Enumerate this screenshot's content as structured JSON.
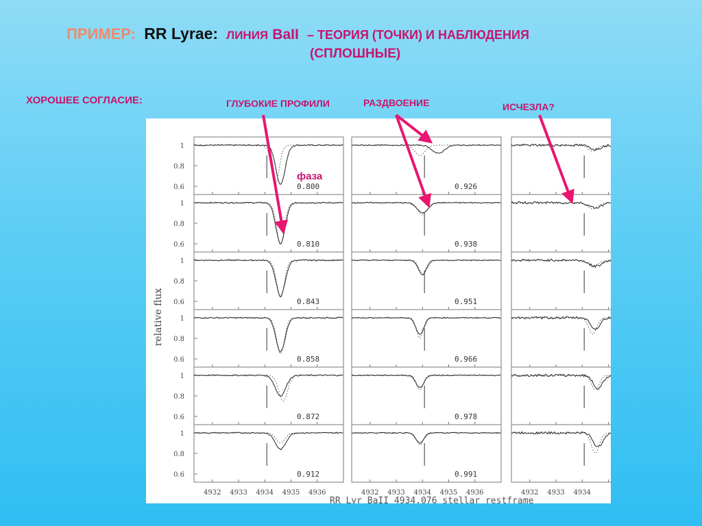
{
  "title": {
    "example": "ПРИМЕР:",
    "star": "RR Lyrae:",
    "line_word": "ЛИНИЯ",
    "ion": "BaII",
    "rest": "– ТЕОРИЯ (ТОЧКИ) И НАБЛЮДЕНИЯ",
    "line2": "(СПЛОШНЫЕ)"
  },
  "labels": {
    "good_agreement": "ХОРОШЕЕ СОГЛАСИЕ:",
    "deep_profiles": "ГЛУБОКИЕ ПРОФИЛИ",
    "splitting": "РАЗДВОЕНИЕ",
    "vanished": "ИСЧЕЗЛА?",
    "phase": "фаза"
  },
  "colors": {
    "example": "#f08a6a",
    "accent": "#c7156d",
    "arrow": "#e8166f",
    "observed": "#333333",
    "theory": "#555555"
  },
  "chart_data": {
    "type": "line",
    "ylabel": "relative flux",
    "xlabel": "RR Lyr  BaII  4934.076  stellar restframe",
    "xlim": [
      4931.3,
      4937.0
    ],
    "ylim": [
      0.52,
      1.08
    ],
    "xticks": [
      4932,
      4933,
      4934,
      4935,
      4936
    ],
    "yticks": [
      1,
      0.8,
      0.6
    ],
    "ytick_labels": [
      "1",
      "0.8",
      "0.6"
    ],
    "rest_wavelength": 4934.076,
    "columns": [
      {
        "phases": [
          "0.800",
          "0.810",
          "0.843",
          "0.858",
          "0.872",
          "0.912"
        ],
        "obs_center": [
          4934.6,
          4934.6,
          4934.6,
          4934.6,
          4934.6,
          4934.6
        ],
        "obs_depth": [
          0.38,
          0.4,
          0.35,
          0.33,
          0.2,
          0.16
        ],
        "obs_width": [
          0.35,
          0.35,
          0.35,
          0.35,
          0.4,
          0.4
        ],
        "th_center": [
          4934.4,
          4934.6,
          4934.6,
          4934.6,
          4934.7,
          4934.6
        ],
        "th_depth": [
          0.38,
          0.4,
          0.36,
          0.35,
          0.25,
          0.1
        ],
        "noise": 0.012
      },
      {
        "phases": [
          "0.926",
          "0.938",
          "0.951",
          "0.966",
          "0.978",
          "0.991"
        ],
        "obs_center": [
          4934.6,
          4934.0,
          4934.0,
          4933.9,
          4933.9,
          4933.9
        ],
        "obs_depth": [
          0.08,
          0.1,
          0.14,
          0.16,
          0.12,
          0.1
        ],
        "obs_width": [
          0.45,
          0.4,
          0.3,
          0.3,
          0.3,
          0.3
        ],
        "th_center": [
          4933.9,
          4934.0,
          4934.0,
          4933.9,
          4933.9,
          4933.9
        ],
        "th_depth": [
          0.1,
          0.12,
          0.14,
          0.2,
          0.14,
          0.12
        ],
        "noise": 0.01
      },
      {
        "phases": [
          "",
          "",
          "",
          "",
          "",
          ""
        ],
        "obs_center": [
          4934.5,
          4934.5,
          4934.5,
          4934.5,
          4934.6,
          4934.6
        ],
        "obs_depth": [
          0.04,
          0.05,
          0.06,
          0.11,
          0.13,
          0.14
        ],
        "obs_width": [
          0.4,
          0.45,
          0.45,
          0.35,
          0.35,
          0.35
        ],
        "th_center": [
          4934.4,
          4934.4,
          4934.4,
          4934.4,
          4934.5,
          4934.5
        ],
        "th_depth": [
          0.06,
          0.06,
          0.06,
          0.16,
          0.14,
          0.2
        ],
        "noise": 0.022
      }
    ]
  }
}
